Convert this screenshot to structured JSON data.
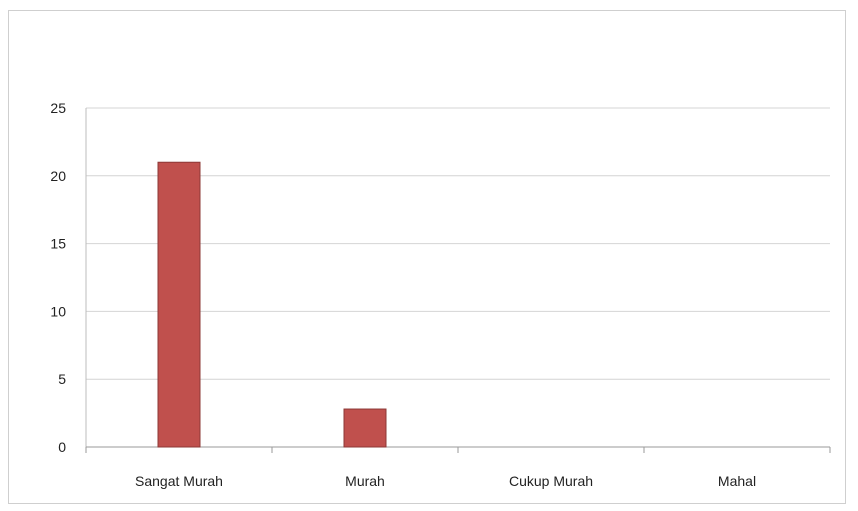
{
  "chart_data": {
    "type": "bar",
    "categories": [
      "Sangat Murah",
      "Murah",
      "Cukup Murah",
      "Mahal"
    ],
    "values": [
      21,
      2.8,
      0,
      0
    ],
    "ylim": [
      0,
      25
    ],
    "yticks": [
      0,
      5,
      10,
      15,
      20,
      25
    ],
    "grid": true,
    "legend": "none",
    "bar_color": "#c0504d",
    "bar_border_color": "#8c3836"
  }
}
